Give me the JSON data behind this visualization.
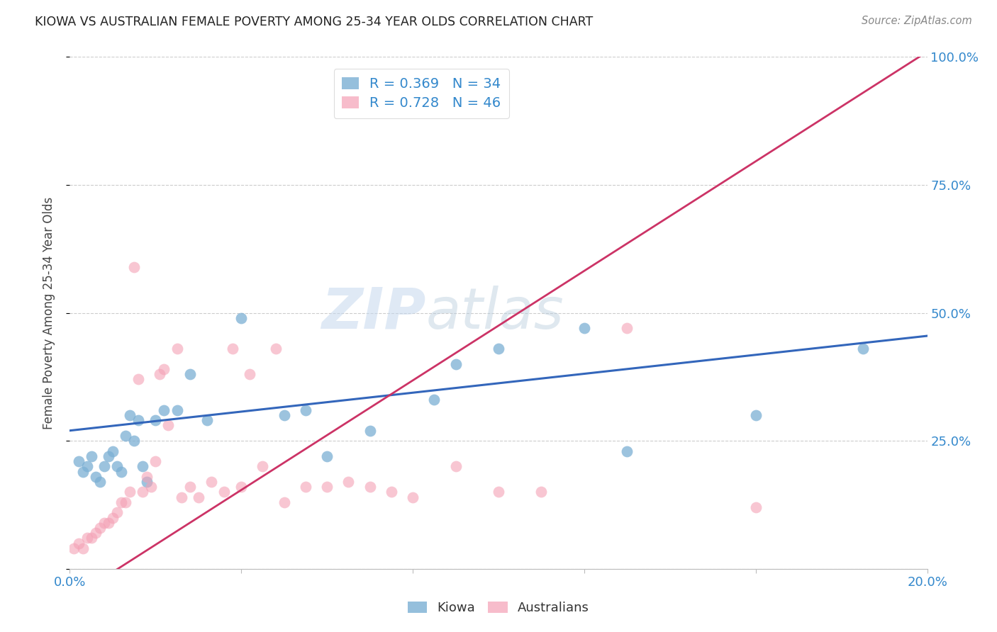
{
  "title": "KIOWA VS AUSTRALIAN FEMALE POVERTY AMONG 25-34 YEAR OLDS CORRELATION CHART",
  "source": "Source: ZipAtlas.com",
  "ylabel": "Female Poverty Among 25-34 Year Olds",
  "xlim": [
    0.0,
    0.2
  ],
  "ylim": [
    0.0,
    1.0
  ],
  "x_ticks": [
    0.0,
    0.04,
    0.08,
    0.12,
    0.16,
    0.2
  ],
  "x_tick_labels": [
    "0.0%",
    "",
    "",
    "",
    "",
    "20.0%"
  ],
  "y_ticks": [
    0.0,
    0.25,
    0.5,
    0.75,
    1.0
  ],
  "y_tick_labels_right": [
    "",
    "25.0%",
    "50.0%",
    "75.0%",
    "100.0%"
  ],
  "kiowa_color": "#7BAFD4",
  "australian_color": "#F4A0B5",
  "kiowa_line_color": "#3366BB",
  "australian_line_color": "#CC3366",
  "kiowa_R": 0.369,
  "kiowa_N": 34,
  "australian_R": 0.728,
  "australian_N": 46,
  "kiowa_x": [
    0.002,
    0.003,
    0.004,
    0.005,
    0.006,
    0.007,
    0.008,
    0.009,
    0.01,
    0.011,
    0.012,
    0.013,
    0.014,
    0.015,
    0.016,
    0.017,
    0.018,
    0.02,
    0.022,
    0.025,
    0.028,
    0.032,
    0.04,
    0.05,
    0.055,
    0.06,
    0.07,
    0.085,
    0.09,
    0.1,
    0.12,
    0.13,
    0.16,
    0.185
  ],
  "kiowa_y": [
    0.21,
    0.19,
    0.2,
    0.22,
    0.18,
    0.17,
    0.2,
    0.22,
    0.23,
    0.2,
    0.19,
    0.26,
    0.3,
    0.25,
    0.29,
    0.2,
    0.17,
    0.29,
    0.31,
    0.31,
    0.38,
    0.29,
    0.49,
    0.3,
    0.31,
    0.22,
    0.27,
    0.33,
    0.4,
    0.43,
    0.47,
    0.23,
    0.3,
    0.43
  ],
  "australian_x": [
    0.001,
    0.002,
    0.003,
    0.004,
    0.005,
    0.006,
    0.007,
    0.008,
    0.009,
    0.01,
    0.011,
    0.012,
    0.013,
    0.014,
    0.015,
    0.016,
    0.017,
    0.018,
    0.019,
    0.02,
    0.021,
    0.022,
    0.023,
    0.025,
    0.026,
    0.028,
    0.03,
    0.033,
    0.036,
    0.038,
    0.04,
    0.042,
    0.045,
    0.048,
    0.05,
    0.055,
    0.06,
    0.065,
    0.07,
    0.075,
    0.08,
    0.09,
    0.1,
    0.11,
    0.13,
    0.16
  ],
  "australian_y": [
    0.04,
    0.05,
    0.04,
    0.06,
    0.06,
    0.07,
    0.08,
    0.09,
    0.09,
    0.1,
    0.11,
    0.13,
    0.13,
    0.15,
    0.59,
    0.37,
    0.15,
    0.18,
    0.16,
    0.21,
    0.38,
    0.39,
    0.28,
    0.43,
    0.14,
    0.16,
    0.14,
    0.17,
    0.15,
    0.43,
    0.16,
    0.38,
    0.2,
    0.43,
    0.13,
    0.16,
    0.16,
    0.17,
    0.16,
    0.15,
    0.14,
    0.2,
    0.15,
    0.15,
    0.47,
    0.12
  ],
  "kiowa_trend": [
    0.0,
    0.2,
    0.27,
    0.455
  ],
  "australian_trend": [
    0.0,
    0.2,
    -0.06,
    1.01
  ],
  "watermark_ZIP": "ZIP",
  "watermark_atlas": "atlas",
  "background_color": "#FFFFFF",
  "grid_color": "#CCCCCC",
  "tick_color": "#3388CC",
  "title_color": "#222222"
}
